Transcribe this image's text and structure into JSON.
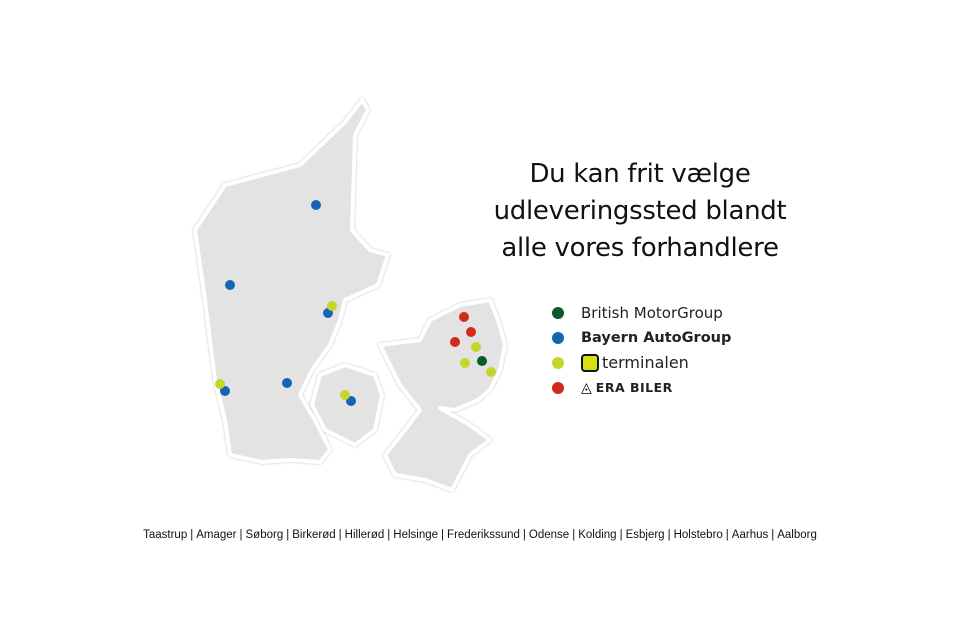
{
  "headline": [
    "Du kan frit vælge",
    "udleveringssted blandt",
    "alle vores forhandlere"
  ],
  "legend": [
    {
      "label": "British MotorGroup",
      "color": "#0b5a2a",
      "icon": "dot"
    },
    {
      "label": "Bayern AutoGroup",
      "color": "#1565b5",
      "icon": "dot"
    },
    {
      "label": "terminalen",
      "color": "#c5d62a",
      "icon": "terminalen-logo"
    },
    {
      "label": "ERA BILER",
      "color": "#d42a1e",
      "icon": "era-triangle-logo"
    }
  ],
  "map": {
    "land_color": "#e3e3e3",
    "dealer_brands": [
      "bayern",
      "bayern",
      "bayern",
      "bayern",
      "bayern",
      "bayern",
      "terminalen",
      "terminalen",
      "terminalen",
      "terminalen",
      "terminalen",
      "terminalen",
      "era",
      "era",
      "era",
      "british"
    ]
  },
  "cities": [
    "Taastrup",
    "Amager",
    "Søborg",
    "Birkerød",
    "Hillerød",
    "Helsinge",
    "Frederikssund",
    "Odense",
    "Kolding",
    "Esbjerg",
    "Holstebro",
    "Aarhus",
    "Aalborg"
  ],
  "separator": "|"
}
